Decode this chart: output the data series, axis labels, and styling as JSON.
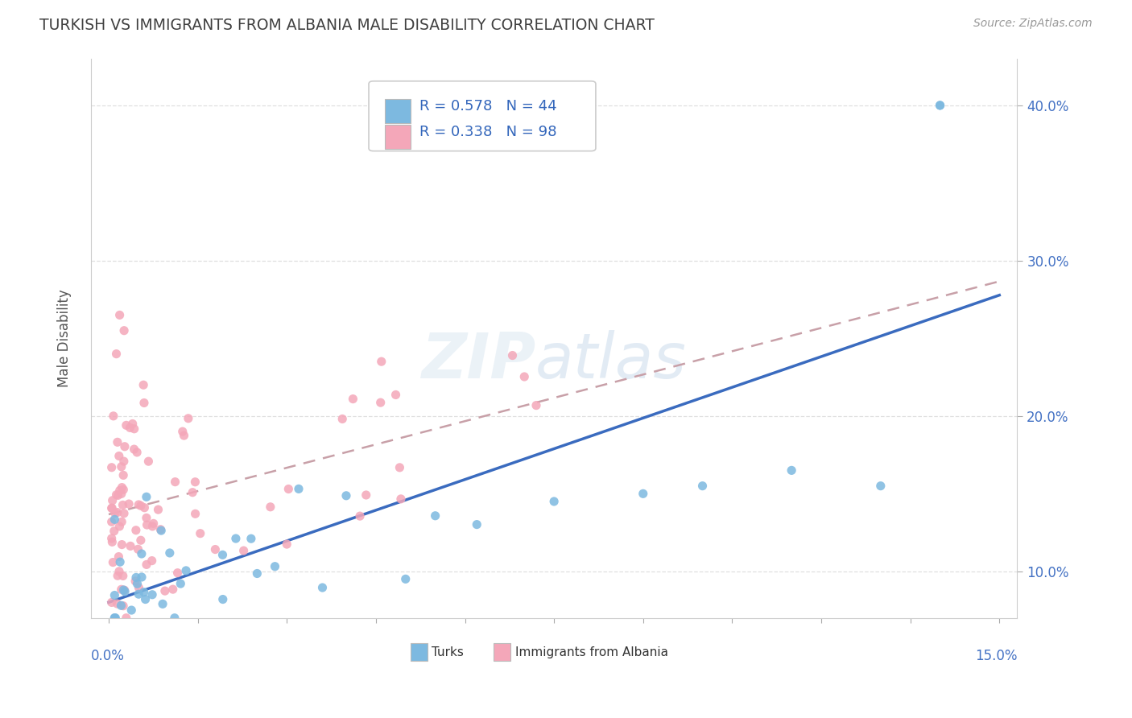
{
  "title": "TURKISH VS IMMIGRANTS FROM ALBANIA MALE DISABILITY CORRELATION CHART",
  "source": "Source: ZipAtlas.com",
  "ylabel": "Male Disability",
  "blue_color": "#7db9e0",
  "pink_color": "#f4a7b9",
  "blue_line_color": "#3a6bbf",
  "pink_line_color": "#e08090",
  "title_color": "#404040",
  "axis_label_color": "#4472c4",
  "watermark": "ZIPatlas",
  "xlim": [
    0.0,
    0.15
  ],
  "ylim": [
    0.07,
    0.43
  ],
  "y_ticks": [
    0.1,
    0.2,
    0.3,
    0.4
  ],
  "y_tick_labels": [
    "10.0%",
    "20.0%",
    "30.0%",
    "40.0%"
  ],
  "grid_color": "#d8d8d8",
  "legend_blue_R": "R = 0.578",
  "legend_blue_N": "N = 44",
  "legend_pink_R": "R = 0.338",
  "legend_pink_N": "N = 98"
}
